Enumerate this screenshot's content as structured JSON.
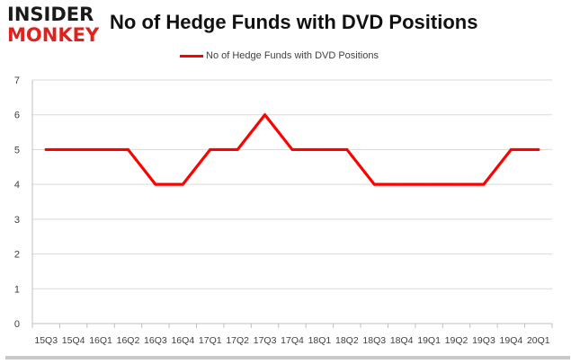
{
  "logo": {
    "line1": "INSIDER",
    "line2": "MONKEY"
  },
  "colors": {
    "series": "#ff0000",
    "grid": "#d9d9d9",
    "axis_text": "#404040",
    "logo_red": "#e0221c"
  },
  "chart_data": {
    "type": "line",
    "title": "No of Hedge Funds with DVD Positions",
    "xlabel": "",
    "ylabel": "",
    "categories": [
      "15Q3",
      "15Q4",
      "16Q1",
      "16Q2",
      "16Q3",
      "16Q4",
      "17Q1",
      "17Q2",
      "17Q3",
      "17Q4",
      "18Q1",
      "18Q2",
      "18Q3",
      "18Q4",
      "19Q1",
      "19Q2",
      "19Q3",
      "19Q4",
      "20Q1"
    ],
    "series": [
      {
        "name": "No of Hedge Funds with DVD Positions",
        "values": [
          5,
          5,
          5,
          5,
          4,
          4,
          5,
          5,
          6,
          5,
          5,
          5,
          4,
          4,
          4,
          4,
          4,
          5,
          5
        ]
      }
    ],
    "ylim": [
      0,
      7
    ],
    "yticks": [
      "0",
      "1",
      "2",
      "3",
      "4",
      "5",
      "6",
      "7"
    ],
    "grid": true,
    "legend": "top-center"
  }
}
